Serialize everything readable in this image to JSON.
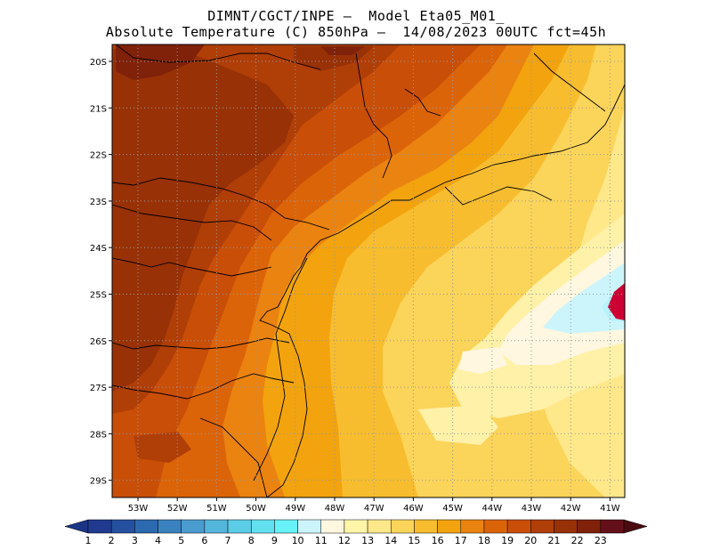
{
  "title_line1": "DIMNT/CGCT/INPE –  Model Eta05_M01_",
  "title_line2": "Absolute Temperature (C) 850hPa –  14/08/2023 00UTC fct=45h",
  "latitude_labels": [
    "20S",
    "21S",
    "22S",
    "23S",
    "24S",
    "25S",
    "26S",
    "27S",
    "28S",
    "29S"
  ],
  "longitude_labels": [
    "53W",
    "52W",
    "51W",
    "50W",
    "49W",
    "48W",
    "47W",
    "46W",
    "45W",
    "44W",
    "43W",
    "42W",
    "41W"
  ],
  "colorbar": {
    "labels": [
      "1",
      "2",
      "3",
      "4",
      "5",
      "6",
      "7",
      "8",
      "9",
      "10",
      "11",
      "12",
      "13",
      "14",
      "15",
      "16",
      "17",
      "18",
      "19",
      "20",
      "21",
      "22",
      "23"
    ],
    "colors": [
      "#1f3a8f",
      "#25509f",
      "#2c69af",
      "#3a82bf",
      "#4a9ccf",
      "#55b6dc",
      "#5ccde7",
      "#63e0ef",
      "#66f2f8",
      "#ccf5fb",
      "#fff7e0",
      "#fff5a8",
      "#ffe88a",
      "#fbd45a",
      "#f7bd2f",
      "#f2a30e",
      "#ea8310",
      "#dc6408",
      "#c94e07",
      "#b03e07",
      "#983106",
      "#80210a",
      "#64101a"
    ],
    "left_arrow_color": "#1a3586",
    "right_arrow_color": "#4a0a10"
  },
  "map_colors": {
    "t12": "#fff1a8",
    "t13": "#ffe88a",
    "t14": "#fbd45a",
    "t15": "#f7bd2f",
    "t16": "#f2a30e",
    "t17": "#ea8310",
    "t18": "#dc6408",
    "t19": "#c94e07",
    "t20": "#b03e07",
    "t21": "#983106",
    "t22": "#80210a",
    "t10": "#ccf5fb",
    "t9": "#b8f2fb",
    "t11": "#fff7e0",
    "magenta": "#cc0033"
  }
}
